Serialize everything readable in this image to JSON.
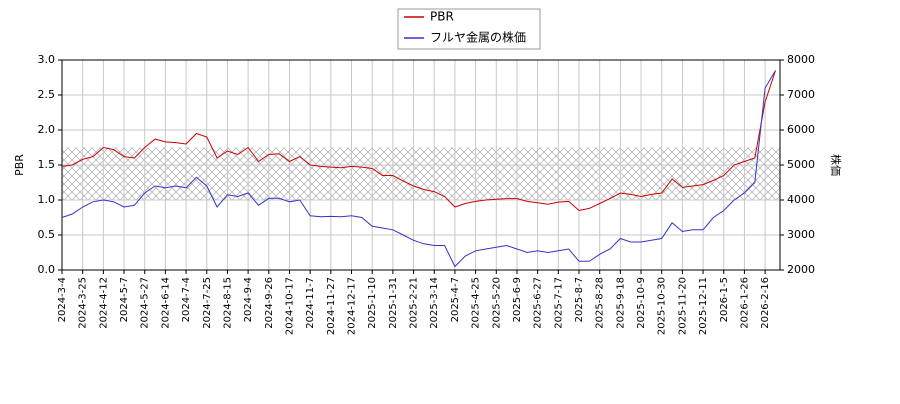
{
  "chart_data": {
    "type": "line",
    "categories": [
      "2024-3-4",
      null,
      "2024-3-25",
      null,
      "2024-4-12",
      null,
      "2024-5-7",
      null,
      "2024-5-27",
      null,
      "2024-6-14",
      null,
      "2024-7-4",
      null,
      "2024-7-25",
      null,
      "2024-8-15",
      null,
      "2024-9-4",
      null,
      "2024-9-26",
      null,
      "2024-10-17",
      null,
      "2024-11-7",
      null,
      "2024-11-27",
      null,
      "2024-12-17",
      null,
      "2025-1-10",
      null,
      "2025-1-31",
      null,
      "2025-2-21",
      null,
      "2025-3-14",
      null,
      "2025-4-7",
      null,
      "2025-4-25",
      null,
      "2025-5-20",
      null,
      "2025-6-9",
      null,
      "2025-6-27",
      null,
      "2025-7-17",
      null,
      "2025-8-7",
      null,
      "2025-8-28",
      null,
      "2025-9-18",
      null,
      "2025-10-9",
      null,
      "2025-10-30",
      null,
      "2025-11-20",
      null,
      "2025-12-11",
      null,
      "2026-1-5",
      null,
      "2026-1-26",
      null,
      "2026-2-16",
      null
    ],
    "series": [
      {
        "name": "PBR",
        "color": "#cc0000",
        "values": [
          1.48,
          1.5,
          1.58,
          1.62,
          1.75,
          1.72,
          1.62,
          1.6,
          1.75,
          1.87,
          1.83,
          1.82,
          1.8,
          1.95,
          1.9,
          1.6,
          1.7,
          1.65,
          1.75,
          1.55,
          1.65,
          1.66,
          1.55,
          1.62,
          1.5,
          1.48,
          1.47,
          1.46,
          1.48,
          1.47,
          1.45,
          1.35,
          1.35,
          1.27,
          1.2,
          1.15,
          1.12,
          1.05,
          0.9,
          0.95,
          0.98,
          1.0,
          1.01,
          1.02,
          1.02,
          0.98,
          0.96,
          0.94,
          0.97,
          0.98,
          0.85,
          0.88,
          0.95,
          1.02,
          1.1,
          1.08,
          1.05,
          1.08,
          1.1,
          1.3,
          1.18,
          1.2,
          1.22,
          1.28,
          1.35,
          1.5,
          1.55,
          1.6,
          2.4,
          2.85
        ]
      },
      {
        "name": "フルヤ金属の株価",
        "color": "#3333cc",
        "axis": "y2",
        "values": [
          3500,
          3600,
          3800,
          3950,
          4000,
          3950,
          3800,
          3850,
          4200,
          4400,
          4350,
          4400,
          4350,
          4650,
          4400,
          3800,
          4150,
          4100,
          4200,
          3850,
          4050,
          4050,
          3950,
          4000,
          3550,
          3520,
          3530,
          3520,
          3550,
          3500,
          3250,
          3200,
          3150,
          3000,
          2850,
          2750,
          2700,
          2700,
          2100,
          2400,
          2550,
          2600,
          2650,
          2700,
          2600,
          2500,
          2550,
          2500,
          2550,
          2600,
          2250,
          2250,
          2450,
          2600,
          2900,
          2800,
          2800,
          2850,
          2900,
          3350,
          3100,
          3150,
          3150,
          3500,
          3700,
          4000,
          4200,
          4500,
          7200,
          7700
        ]
      }
    ],
    "ylabel": "PBR",
    "y2label": "株価",
    "ylim": [
      0,
      3
    ],
    "yticks": [
      {
        "value": 0,
        "label": "0.0"
      },
      0.5,
      {
        "value": 1,
        "label": "1.0"
      },
      1.5,
      {
        "value": 2,
        "label": "2.0"
      },
      2.5,
      {
        "value": 3,
        "label": "3.0"
      }
    ],
    "y2lim": [
      2000,
      8000
    ],
    "y2ticks": [
      2000,
      3000,
      4000,
      5000,
      6000,
      7000,
      8000
    ],
    "band": [
      1.0,
      1.75
    ],
    "grid": true,
    "legend": "top"
  }
}
